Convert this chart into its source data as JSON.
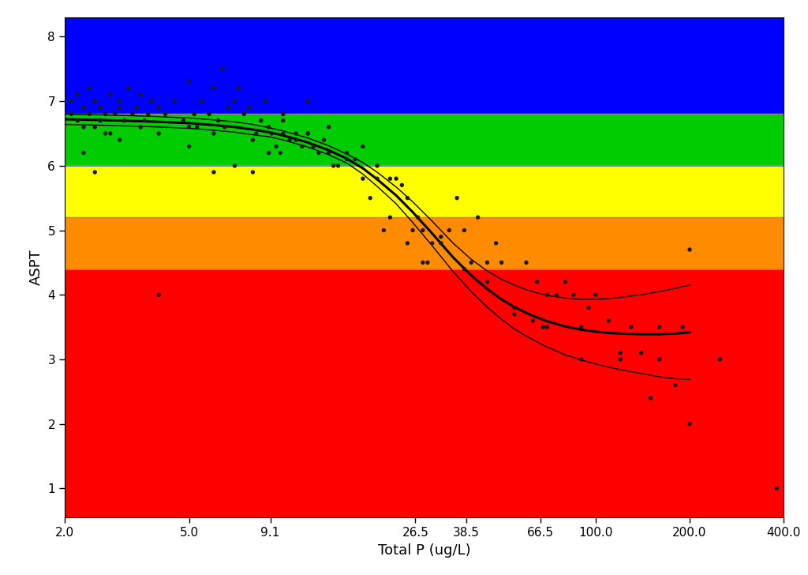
{
  "title": "",
  "xlabel": "Total P (ug/L)",
  "ylabel": "ASPT",
  "xlim_log": [
    2.0,
    400.0
  ],
  "ylim": [
    0.55,
    8.3
  ],
  "yticks": [
    1,
    2,
    3,
    4,
    5,
    6,
    7,
    8
  ],
  "xtick_labels": [
    "2.0",
    "5.0",
    "9.1",
    "26.5",
    "38.5",
    "66.5",
    "100.0",
    "200.0",
    "400.0"
  ],
  "xtick_values": [
    2.0,
    5.0,
    9.1,
    26.5,
    38.5,
    66.5,
    100.0,
    200.0,
    400.0
  ],
  "bands": [
    {
      "ymin": 6.8,
      "ymax": 8.3,
      "color": "#0000FF"
    },
    {
      "ymin": 6.0,
      "ymax": 6.8,
      "color": "#00CC00"
    },
    {
      "ymin": 5.2,
      "ymax": 6.0,
      "color": "#FFFF00"
    },
    {
      "ymin": 4.4,
      "ymax": 5.2,
      "color": "#FF8C00"
    },
    {
      "ymin": 0.55,
      "ymax": 4.4,
      "color": "#FF0000"
    }
  ],
  "hlines": [
    4.4,
    5.2,
    6.0,
    6.8
  ],
  "scatter_x": [
    2.1,
    2.1,
    2.2,
    2.2,
    2.3,
    2.3,
    2.4,
    2.4,
    2.5,
    2.5,
    2.6,
    2.6,
    2.7,
    2.8,
    2.8,
    2.9,
    3.0,
    3.0,
    3.1,
    3.2,
    3.3,
    3.4,
    3.5,
    3.6,
    3.7,
    3.8,
    4.0,
    4.0,
    4.2,
    4.5,
    4.8,
    5.0,
    5.0,
    5.2,
    5.3,
    5.5,
    5.8,
    6.0,
    6.0,
    6.2,
    6.4,
    6.5,
    6.7,
    7.0,
    7.2,
    7.5,
    7.8,
    8.0,
    8.2,
    8.5,
    8.8,
    9.0,
    9.2,
    9.5,
    9.8,
    10.0,
    10.0,
    10.5,
    11.0,
    11.5,
    12.0,
    12.0,
    12.5,
    13.0,
    13.5,
    14.0,
    14.5,
    15.0,
    16.0,
    17.0,
    18.0,
    19.0,
    20.0,
    21.0,
    22.0,
    23.0,
    24.0,
    25.0,
    26.0,
    27.0,
    28.0,
    29.0,
    30.0,
    32.0,
    34.0,
    36.0,
    38.0,
    40.0,
    42.0,
    45.0,
    48.0,
    50.0,
    55.0,
    60.0,
    63.0,
    65.0,
    68.0,
    70.0,
    75.0,
    80.0,
    85.0,
    90.0,
    95.0,
    100.0,
    110.0,
    120.0,
    130.0,
    140.0,
    150.0,
    160.0,
    180.0,
    190.0,
    200.0,
    250.0,
    380.0,
    2.3,
    2.5,
    2.7,
    3.0,
    3.5,
    4.0,
    5.0,
    6.0,
    7.0,
    8.0,
    9.0,
    10.0,
    11.0,
    12.0,
    14.0,
    16.0,
    18.0,
    20.0,
    22.0,
    25.0,
    28.0,
    32.0,
    38.0,
    45.0,
    55.0,
    70.0,
    90.0,
    120.0,
    160.0,
    200.0
  ],
  "scatter_y": [
    7.0,
    6.8,
    7.1,
    6.7,
    6.9,
    6.6,
    7.2,
    6.8,
    7.0,
    6.6,
    6.9,
    6.7,
    6.8,
    7.1,
    6.5,
    6.8,
    6.9,
    7.0,
    6.7,
    7.2,
    6.8,
    6.9,
    7.1,
    6.7,
    6.8,
    7.0,
    6.9,
    6.5,
    6.8,
    7.0,
    6.7,
    6.6,
    7.3,
    6.8,
    6.6,
    7.0,
    6.8,
    6.5,
    7.2,
    6.7,
    7.5,
    6.6,
    6.9,
    7.0,
    7.2,
    6.8,
    6.9,
    6.4,
    6.5,
    6.7,
    7.0,
    6.6,
    6.5,
    6.3,
    6.2,
    6.8,
    6.7,
    6.4,
    6.5,
    6.3,
    6.5,
    7.0,
    6.3,
    6.2,
    6.4,
    6.6,
    6.0,
    6.0,
    6.2,
    6.1,
    5.8,
    5.5,
    5.8,
    5.0,
    5.2,
    5.8,
    5.7,
    5.5,
    5.0,
    5.2,
    5.0,
    4.5,
    4.8,
    4.9,
    5.0,
    5.5,
    5.0,
    4.5,
    5.2,
    4.5,
    4.8,
    4.5,
    3.8,
    4.5,
    3.6,
    4.2,
    3.5,
    4.0,
    4.0,
    4.2,
    4.0,
    3.5,
    3.8,
    4.0,
    3.6,
    3.1,
    3.5,
    3.1,
    2.4,
    3.0,
    2.6,
    3.5,
    2.0,
    3.0,
    1.0,
    6.2,
    5.9,
    6.5,
    6.4,
    6.6,
    4.0,
    6.3,
    5.9,
    6.0,
    5.9,
    6.2,
    6.5,
    6.4,
    6.5,
    6.2,
    6.1,
    6.3,
    6.0,
    5.8,
    4.8,
    4.5,
    4.8,
    4.4,
    4.2,
    3.7,
    3.5,
    3.0,
    3.0,
    3.5,
    4.7
  ],
  "curve_x": [
    2.0,
    2.5,
    3.0,
    3.5,
    4.0,
    5.0,
    6.0,
    7.0,
    8.0,
    9.0,
    10.0,
    12.0,
    14.0,
    16.0,
    18.0,
    20.0,
    23.0,
    26.0,
    30.0,
    35.0,
    40.0,
    45.0,
    50.0,
    55.0,
    60.0,
    65.0,
    70.0,
    80.0,
    90.0,
    100.0,
    110.0,
    120.0,
    140.0,
    160.0,
    180.0,
    200.0
  ],
  "curve_y": [
    6.72,
    6.71,
    6.7,
    6.69,
    6.68,
    6.66,
    6.63,
    6.6,
    6.56,
    6.52,
    6.47,
    6.36,
    6.24,
    6.11,
    5.96,
    5.79,
    5.54,
    5.28,
    4.95,
    4.58,
    4.3,
    4.09,
    3.93,
    3.81,
    3.72,
    3.65,
    3.59,
    3.51,
    3.46,
    3.43,
    3.41,
    3.4,
    3.39,
    3.39,
    3.4,
    3.42
  ],
  "ci_upper": [
    6.8,
    6.79,
    6.78,
    6.77,
    6.76,
    6.74,
    6.71,
    6.68,
    6.64,
    6.59,
    6.54,
    6.43,
    6.31,
    6.18,
    6.05,
    5.9,
    5.67,
    5.44,
    5.14,
    4.8,
    4.55,
    4.37,
    4.24,
    4.15,
    4.08,
    4.03,
    3.99,
    3.95,
    3.93,
    3.93,
    3.94,
    3.96,
    4.0,
    4.05,
    4.1,
    4.15
  ],
  "ci_lower": [
    6.64,
    6.63,
    6.62,
    6.61,
    6.6,
    6.58,
    6.55,
    6.52,
    6.48,
    6.45,
    6.4,
    6.29,
    6.17,
    6.04,
    5.87,
    5.68,
    5.41,
    5.12,
    4.76,
    4.36,
    4.05,
    3.81,
    3.62,
    3.47,
    3.36,
    3.27,
    3.19,
    3.07,
    2.99,
    2.93,
    2.88,
    2.84,
    2.78,
    2.73,
    2.7,
    2.69
  ],
  "point_color": "#1a1a1a",
  "point_size": 15,
  "curve_color": "#000000",
  "curve_lw": 2.2,
  "ci_lw": 1.0,
  "background_color": "#FFFFFF"
}
